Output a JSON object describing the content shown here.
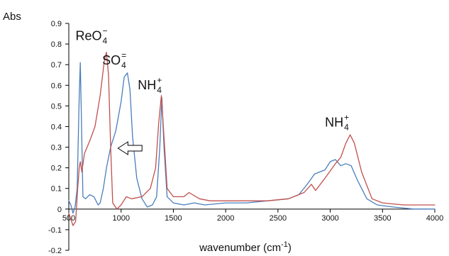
{
  "chart_data": {
    "type": "line",
    "title": "",
    "xlabel": "wavenumber (cm",
    "xlabel_exponent": "-1",
    "xlabel_close": ")",
    "ylabel": "Abs",
    "xlim": [
      500,
      4000
    ],
    "ylim": [
      -0.2,
      0.9
    ],
    "x_ticks": [
      500,
      1000,
      1500,
      2000,
      2500,
      3000,
      3500,
      4000
    ],
    "y_ticks": [
      -0.2,
      -0.1,
      0,
      0.1,
      0.2,
      0.3,
      0.4,
      0.5,
      0.6,
      0.7,
      0.8,
      0.9
    ],
    "grid": false,
    "legend": "none",
    "series": [
      {
        "color": "#4a7ebb",
        "points": [
          [
            500,
            0.04
          ],
          [
            520,
            0.02
          ],
          [
            540,
            -0.02
          ],
          [
            560,
            0.01
          ],
          [
            580,
            0.1
          ],
          [
            600,
            0.55
          ],
          [
            610,
            0.71
          ],
          [
            620,
            0.45
          ],
          [
            635,
            0.06
          ],
          [
            660,
            0.05
          ],
          [
            700,
            0.07
          ],
          [
            740,
            0.06
          ],
          [
            780,
            0.02
          ],
          [
            800,
            0.03
          ],
          [
            830,
            0.1
          ],
          [
            860,
            0.2
          ],
          [
            900,
            0.3
          ],
          [
            950,
            0.38
          ],
          [
            1000,
            0.52
          ],
          [
            1030,
            0.64
          ],
          [
            1060,
            0.66
          ],
          [
            1085,
            0.58
          ],
          [
            1110,
            0.35
          ],
          [
            1150,
            0.15
          ],
          [
            1200,
            0.05
          ],
          [
            1250,
            0.01
          ],
          [
            1300,
            0.02
          ],
          [
            1340,
            0.06
          ],
          [
            1370,
            0.3
          ],
          [
            1390,
            0.54
          ],
          [
            1410,
            0.3
          ],
          [
            1440,
            0.06
          ],
          [
            1500,
            0.03
          ],
          [
            1600,
            0.02
          ],
          [
            1700,
            0.03
          ],
          [
            1800,
            0.02
          ],
          [
            2000,
            0.03
          ],
          [
            2200,
            0.03
          ],
          [
            2400,
            0.04
          ],
          [
            2600,
            0.05
          ],
          [
            2700,
            0.07
          ],
          [
            2780,
            0.12
          ],
          [
            2850,
            0.17
          ],
          [
            2950,
            0.19
          ],
          [
            3000,
            0.23
          ],
          [
            3050,
            0.24
          ],
          [
            3100,
            0.21
          ],
          [
            3150,
            0.22
          ],
          [
            3200,
            0.21
          ],
          [
            3260,
            0.14
          ],
          [
            3350,
            0.05
          ],
          [
            3450,
            0.02
          ],
          [
            3600,
            0.01
          ],
          [
            3800,
            0.0
          ],
          [
            4000,
            0.0
          ]
        ]
      },
      {
        "color": "#c0504d",
        "points": [
          [
            500,
            -0.02
          ],
          [
            540,
            -0.08
          ],
          [
            565,
            -0.06
          ],
          [
            585,
            0.1
          ],
          [
            600,
            0.2
          ],
          [
            610,
            0.23
          ],
          [
            625,
            0.18
          ],
          [
            650,
            0.27
          ],
          [
            700,
            0.33
          ],
          [
            750,
            0.4
          ],
          [
            800,
            0.55
          ],
          [
            840,
            0.72
          ],
          [
            860,
            0.76
          ],
          [
            880,
            0.65
          ],
          [
            900,
            0.3
          ],
          [
            920,
            0.03
          ],
          [
            960,
            0.0
          ],
          [
            1000,
            0.02
          ],
          [
            1050,
            0.06
          ],
          [
            1100,
            0.05
          ],
          [
            1200,
            0.06
          ],
          [
            1280,
            0.1
          ],
          [
            1330,
            0.2
          ],
          [
            1360,
            0.42
          ],
          [
            1385,
            0.55
          ],
          [
            1410,
            0.35
          ],
          [
            1440,
            0.1
          ],
          [
            1500,
            0.06
          ],
          [
            1600,
            0.06
          ],
          [
            1650,
            0.08
          ],
          [
            1750,
            0.05
          ],
          [
            1850,
            0.04
          ],
          [
            2000,
            0.04
          ],
          [
            2200,
            0.04
          ],
          [
            2400,
            0.04
          ],
          [
            2600,
            0.05
          ],
          [
            2750,
            0.08
          ],
          [
            2820,
            0.12
          ],
          [
            2860,
            0.09
          ],
          [
            2950,
            0.15
          ],
          [
            3050,
            0.22
          ],
          [
            3100,
            0.25
          ],
          [
            3150,
            0.32
          ],
          [
            3190,
            0.36
          ],
          [
            3230,
            0.32
          ],
          [
            3300,
            0.18
          ],
          [
            3400,
            0.05
          ],
          [
            3500,
            0.03
          ],
          [
            3700,
            0.02
          ],
          [
            4000,
            0.02
          ]
        ]
      }
    ],
    "annotations": [
      {
        "base": "ReO",
        "sub": "4",
        "sup": "−",
        "x": 870,
        "y": 0.82
      },
      {
        "base": "SO",
        "sub": "4",
        "sup": "=",
        "x": 1050,
        "y": 0.7
      },
      {
        "base": "NH",
        "sub": "4",
        "sup": "+",
        "x": 1390,
        "y": 0.58
      },
      {
        "base": "NH",
        "sub": "4",
        "sup": "+",
        "x": 3180,
        "y": 0.4
      }
    ],
    "arrow": {
      "from": [
        1200,
        0.295
      ],
      "to": [
        970,
        0.295
      ]
    }
  }
}
